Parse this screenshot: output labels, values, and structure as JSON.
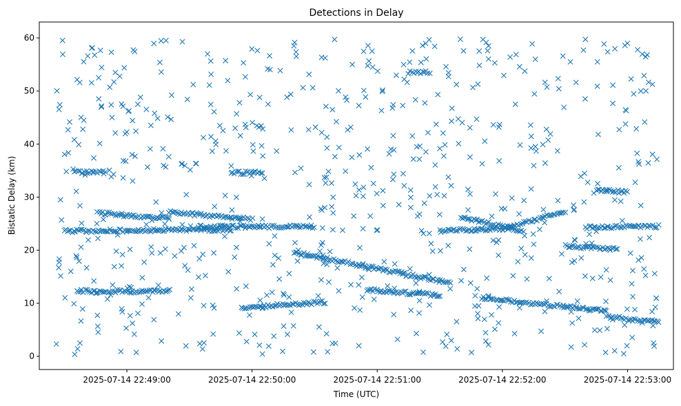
{
  "chart_data": {
    "type": "scatter",
    "title": "Detections in Delay",
    "xlabel": "Time (UTC)",
    "ylabel": "Bistatic Delay (km)",
    "marker": "x",
    "color": "#1f77b4",
    "grid": false,
    "legend": "none",
    "x_start": "2025-07-14 22:48:26",
    "x_end": "2025-07-14 22:53:15",
    "xlim": [
      "2025-07-14 22:48:18",
      "2025-07-14 22:53:22"
    ],
    "ylim": [
      -2.5,
      63
    ],
    "xticks": [
      "2025-07-14 22:49:00",
      "2025-07-14 22:50:00",
      "2025-07-14 22:51:00",
      "2025-07-14 22:52:00",
      "2025-07-14 22:53:00"
    ],
    "yticks": [
      "0",
      "10",
      "20",
      "30",
      "40",
      "50",
      "60"
    ],
    "tracks": [
      {
        "from": [
          "2025-07-14 22:48:36",
          12.3
        ],
        "to": [
          "2025-07-14 22:49:20",
          12.2
        ]
      },
      {
        "from": [
          "2025-07-14 22:49:55",
          9.2
        ],
        "to": [
          "2025-07-14 22:50:35",
          10.2
        ]
      },
      {
        "from": [
          "2025-07-14 22:50:20",
          19.6
        ],
        "to": [
          "2025-07-14 22:51:35",
          13.8
        ]
      },
      {
        "from": [
          "2025-07-14 22:50:55",
          12.5
        ],
        "to": [
          "2025-07-14 22:51:30",
          11.5
        ]
      },
      {
        "from": [
          "2025-07-14 22:51:50",
          11.0
        ],
        "to": [
          "2025-07-14 22:52:50",
          8.5
        ]
      },
      {
        "from": [
          "2025-07-14 22:52:50",
          7.5
        ],
        "to": [
          "2025-07-14 22:53:15",
          6.4
        ]
      },
      {
        "from": [
          "2025-07-14 22:48:46",
          27.0
        ],
        "to": [
          "2025-07-14 22:49:20",
          26.0
        ]
      },
      {
        "from": [
          "2025-07-14 22:49:20",
          27.2
        ],
        "to": [
          "2025-07-14 22:50:00",
          25.8
        ]
      },
      {
        "from": [
          "2025-07-14 22:49:35",
          24.4
        ],
        "to": [
          "2025-07-14 22:50:30",
          24.4
        ]
      },
      {
        "from": [
          "2025-07-14 22:48:30",
          23.6
        ],
        "to": [
          "2025-07-14 22:49:50",
          23.9
        ]
      },
      {
        "from": [
          "2025-07-14 22:51:30",
          23.6
        ],
        "to": [
          "2025-07-14 22:52:05",
          24.2
        ]
      },
      {
        "from": [
          "2025-07-14 22:51:40",
          26.2
        ],
        "to": [
          "2025-07-14 22:52:10",
          23.6
        ]
      },
      {
        "from": [
          "2025-07-14 22:52:00",
          24.0
        ],
        "to": [
          "2025-07-14 22:52:30",
          27.3
        ]
      },
      {
        "from": [
          "2025-07-14 22:52:30",
          20.8
        ],
        "to": [
          "2025-07-14 22:52:55",
          20.2
        ]
      },
      {
        "from": [
          "2025-07-14 22:52:40",
          24.3
        ],
        "to": [
          "2025-07-14 22:53:15",
          24.5
        ]
      },
      {
        "from": [
          "2025-07-14 22:49:50",
          34.6
        ],
        "to": [
          "2025-07-14 22:50:05",
          34.6
        ]
      },
      {
        "from": [
          "2025-07-14 22:48:35",
          34.8
        ],
        "to": [
          "2025-07-14 22:48:50",
          34.6
        ]
      },
      {
        "from": [
          "2025-07-14 22:52:45",
          31.2
        ],
        "to": [
          "2025-07-14 22:53:00",
          31.0
        ]
      },
      {
        "from": [
          "2025-07-14 22:51:15",
          53.5
        ],
        "to": [
          "2025-07-14 22:51:25",
          53.5
        ]
      }
    ]
  }
}
